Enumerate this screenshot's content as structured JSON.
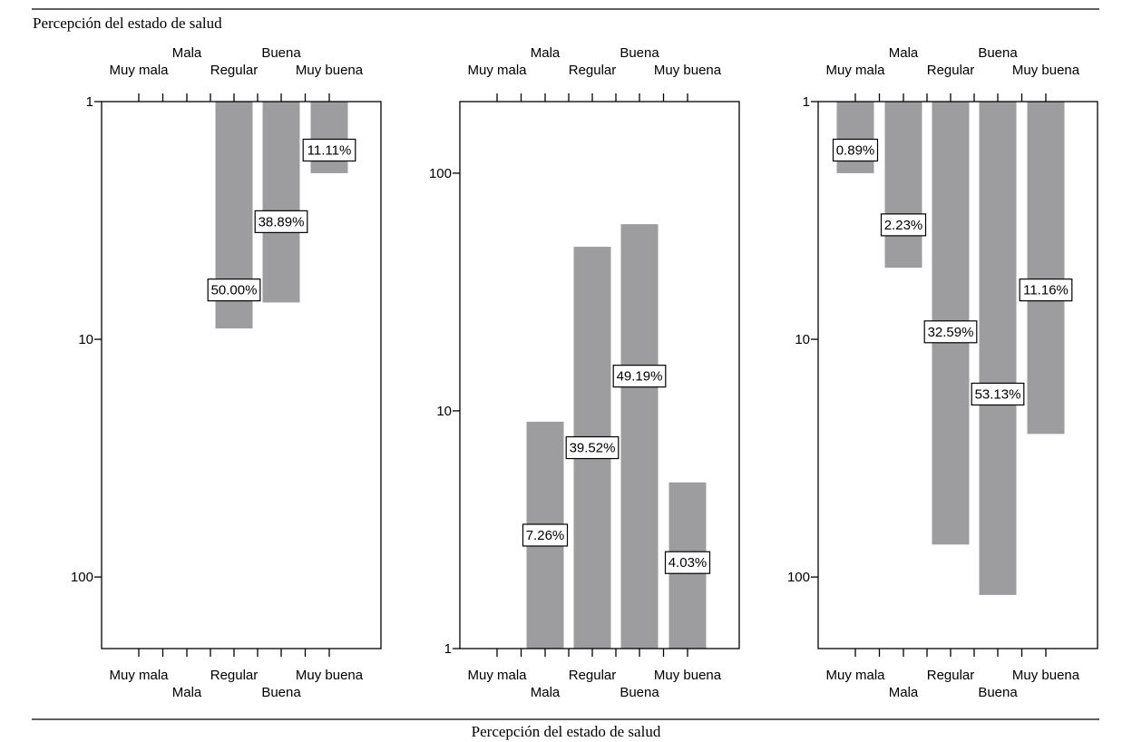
{
  "header_label": "Percepción del estado de salud",
  "footer_label": "Percepción del estado de salud",
  "colors": {
    "bar": "#9d9c9e",
    "axis": "#000000",
    "label_box": "#ffffff"
  },
  "chart_data": [
    {
      "type": "bar",
      "categories": [
        "Muy mala",
        "Mala",
        "Regular",
        "Buena",
        "Muy buena"
      ],
      "scale": "log",
      "y_inverted": true,
      "yticks": [
        "1",
        "10",
        "100"
      ],
      "ylim": [
        1,
        200
      ],
      "values": [
        null,
        null,
        9,
        7,
        2
      ],
      "labels": [
        null,
        null,
        "50.00%",
        "38.89%",
        "11.11%"
      ],
      "label_values": [
        null,
        null,
        6.2,
        3.2,
        1.6
      ]
    },
    {
      "type": "bar",
      "categories": [
        "Muy mala",
        "Mala",
        "Regular",
        "Buena",
        "Muy buena"
      ],
      "scale": "log",
      "y_inverted": false,
      "yticks": [
        "1",
        "10",
        "100"
      ],
      "ylim": [
        1,
        200
      ],
      "values": [
        null,
        9,
        49,
        61,
        5
      ],
      "labels": [
        null,
        "7.26%",
        "39.52%",
        "49.19%",
        "4.03%"
      ],
      "label_values": [
        null,
        3,
        7,
        14,
        2.3
      ]
    },
    {
      "type": "bar",
      "categories": [
        "Muy mala",
        "Mala",
        "Regular",
        "Buena",
        "Muy buena"
      ],
      "scale": "log",
      "y_inverted": true,
      "yticks": [
        "1",
        "10",
        "100"
      ],
      "ylim": [
        1,
        200
      ],
      "values": [
        2,
        5,
        73,
        119,
        25
      ],
      "labels": [
        "0.89%",
        "2.23%",
        "32.59%",
        "53.13%",
        "11.16%"
      ],
      "label_values": [
        1.6,
        3.3,
        9.3,
        17,
        6.2
      ]
    }
  ]
}
